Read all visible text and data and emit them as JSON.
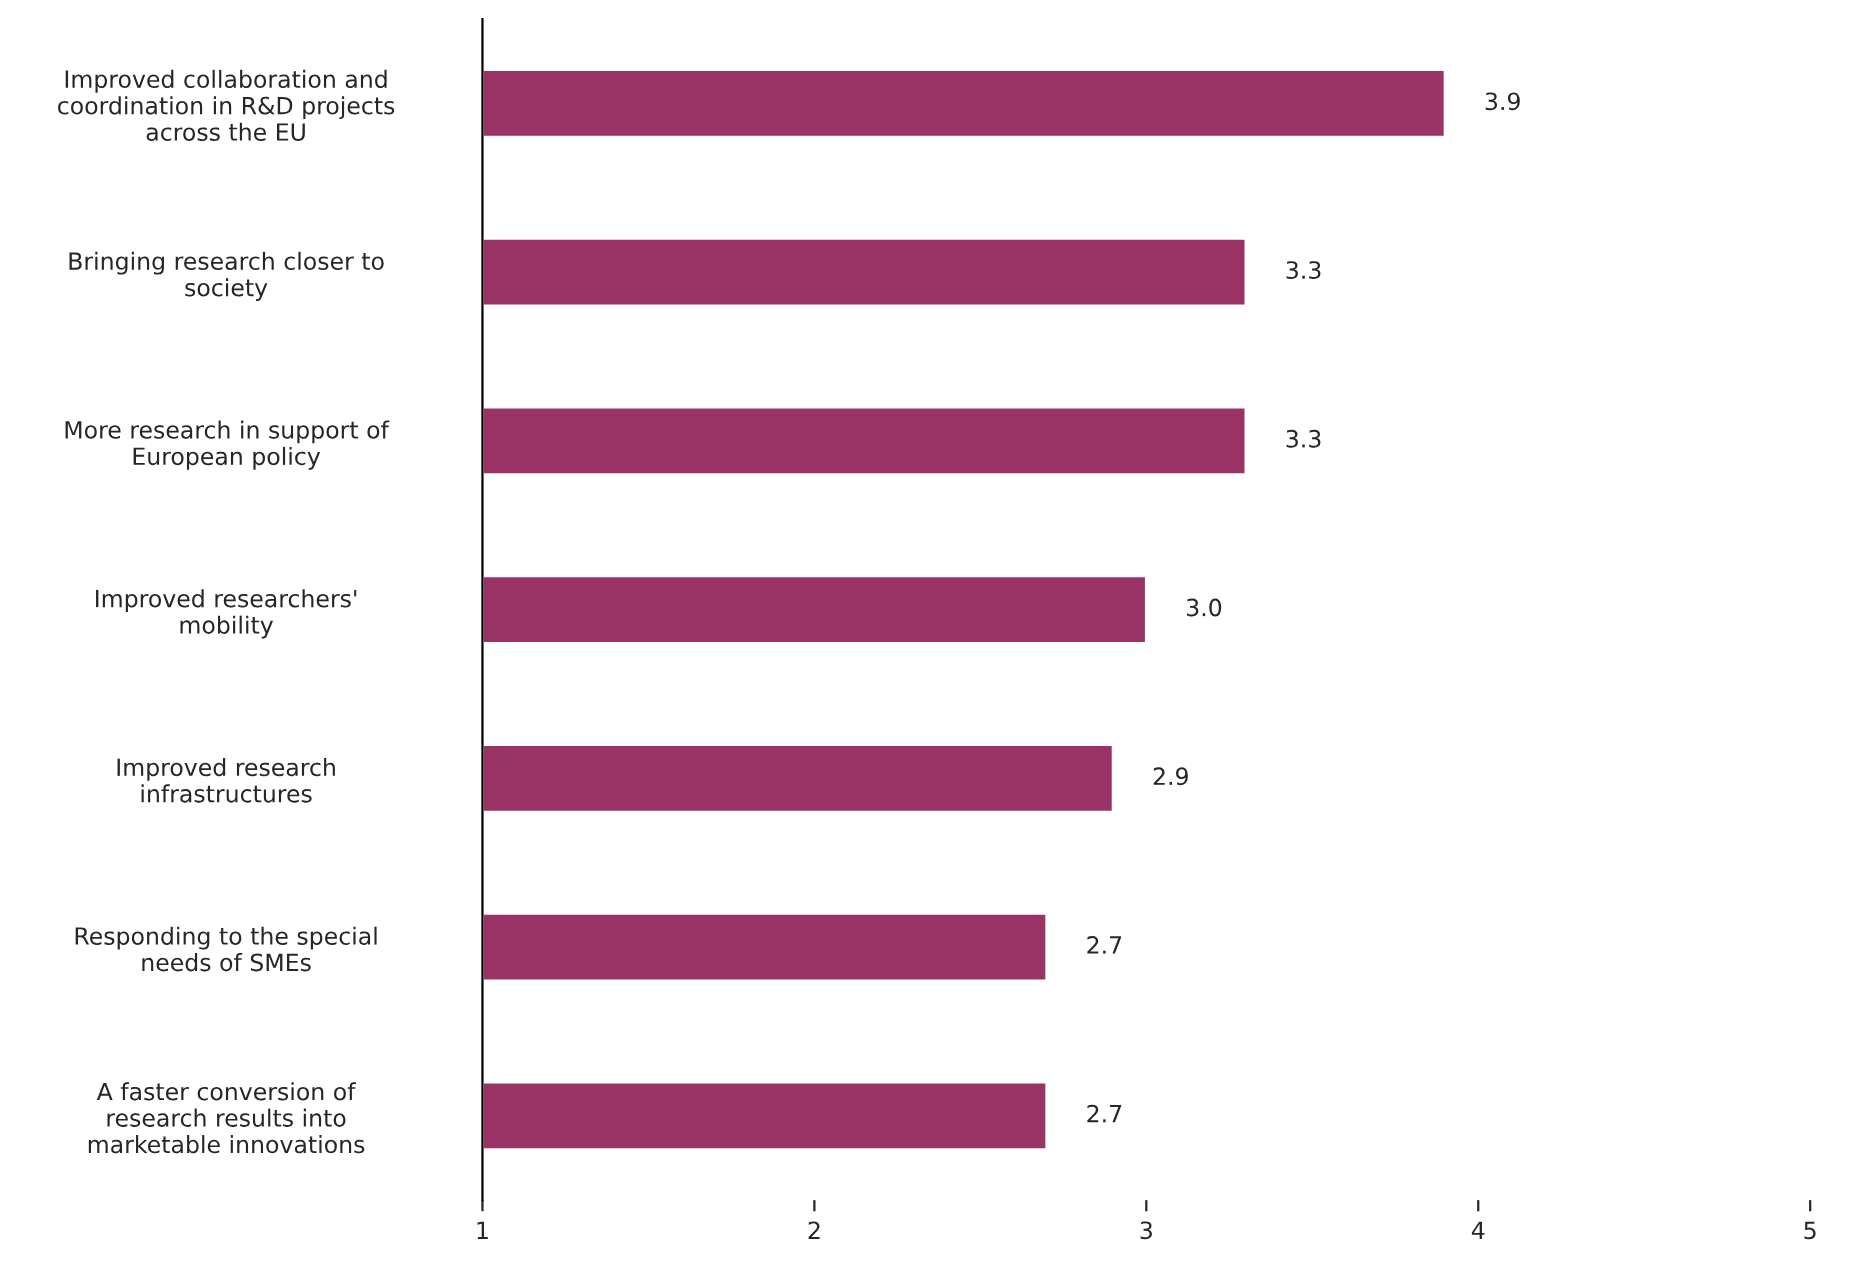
{
  "chart_data": {
    "type": "bar",
    "orientation": "horizontal",
    "categories": [
      "Improved collaboration and\ncoordination in R&D projects\nacross the EU",
      "Bringing research closer to\nsociety",
      "More research in support of\nEuropean policy",
      "Improved researchers'\nmobility",
      "Improved research\ninfrastructures",
      "Responding to the special\nneeds of SMEs",
      "A faster conversion of\nresearch results into\nmarketable innovations"
    ],
    "values": [
      3.9,
      3.3,
      3.3,
      3.0,
      2.9,
      2.7,
      2.7
    ],
    "value_labels": [
      "3.9",
      "3.3",
      "3.3",
      "3.0",
      "2.9",
      "2.7",
      "2.7"
    ],
    "color": "#993366",
    "xlim": [
      1,
      5
    ],
    "xticks": [
      1,
      2,
      3,
      4,
      5
    ],
    "grid": false,
    "legend": false
  }
}
